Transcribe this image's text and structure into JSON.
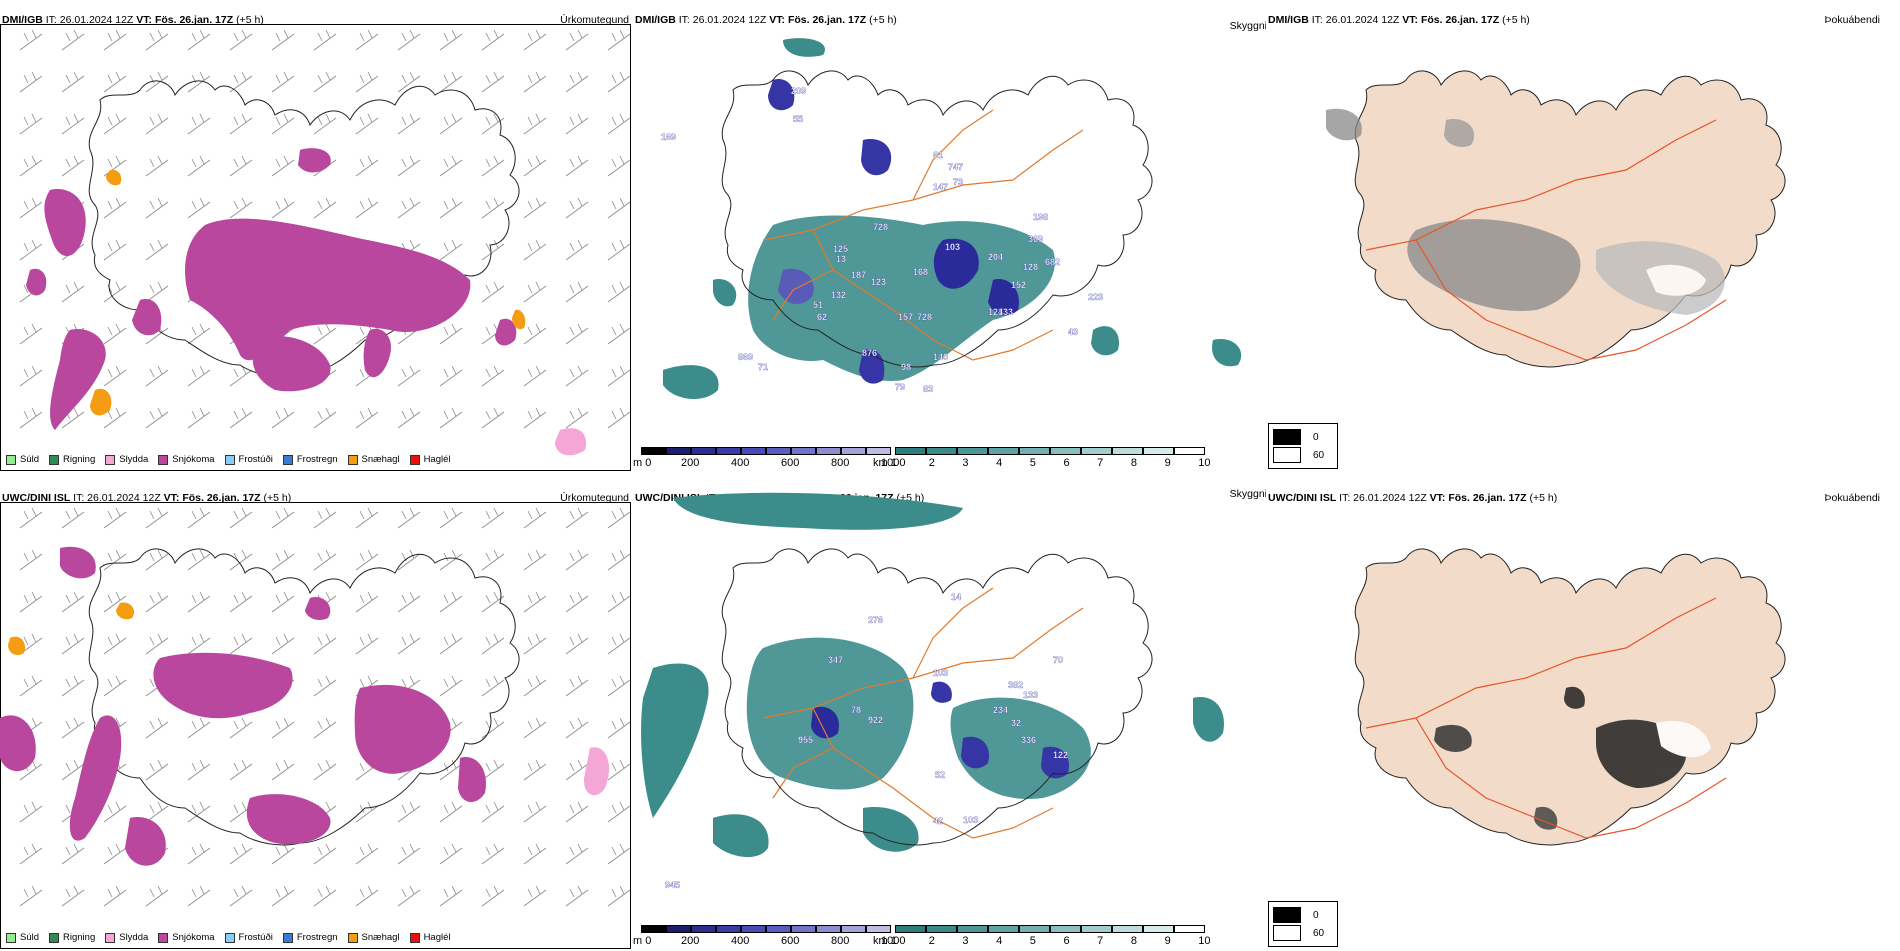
{
  "header_prefix_it": "IT: 26.01.2024 12Z",
  "header_vt_label": "VT:",
  "header_vt_value": "Fös. 26.jan. 17Z",
  "header_suffix": "(+5 h)",
  "rows": [
    {
      "model": "DMI/IGB"
    },
    {
      "model": "UWC/DINI ISL"
    }
  ],
  "panel_titles": {
    "precip": "Úrkomutegund",
    "visibility": "Skyggni",
    "fog": "Þokuábendi"
  },
  "precip_legend": [
    {
      "label": "Súld",
      "color": "#90ee90"
    },
    {
      "label": "Rigning",
      "color": "#2e8b57"
    },
    {
      "label": "Slydda",
      "color": "#f4a6d7"
    },
    {
      "label": "Snjókoma",
      "color": "#b9479e"
    },
    {
      "label": "Frostúði",
      "color": "#87cefa"
    },
    {
      "label": "Frostregn",
      "color": "#3a7bd5"
    },
    {
      "label": "Snæhagl",
      "color": "#f59d12"
    },
    {
      "label": "Haglél",
      "color": "#e81010"
    }
  ],
  "vis_m_ticks": [
    "m 0",
    "200",
    "400",
    "600",
    "800",
    "1000"
  ],
  "vis_km_ticks": [
    "km 1",
    "2",
    "3",
    "4",
    "5",
    "6",
    "7",
    "8",
    "9",
    "10"
  ],
  "fog_legend": [
    {
      "label": "0",
      "color": "#000000"
    },
    {
      "label": "60",
      "color": "#ffffff"
    }
  ],
  "vis_labels_top": [
    "209",
    "55",
    "169",
    "61",
    "747",
    "147",
    "73",
    "198",
    "103",
    "728",
    "204",
    "369",
    "128",
    "682",
    "152",
    "223",
    "133",
    "124",
    "43",
    "123",
    "187",
    "168",
    "157",
    "728",
    "876",
    "98",
    "140",
    "79",
    "83",
    "869",
    "71",
    "132",
    "51",
    "13",
    "62",
    "125"
  ],
  "vis_labels_bottom": [
    "276",
    "347",
    "103",
    "382",
    "133",
    "234",
    "32",
    "336",
    "122",
    "78",
    "922",
    "955",
    "103",
    "945",
    "42",
    "52",
    "14",
    "70"
  ]
}
